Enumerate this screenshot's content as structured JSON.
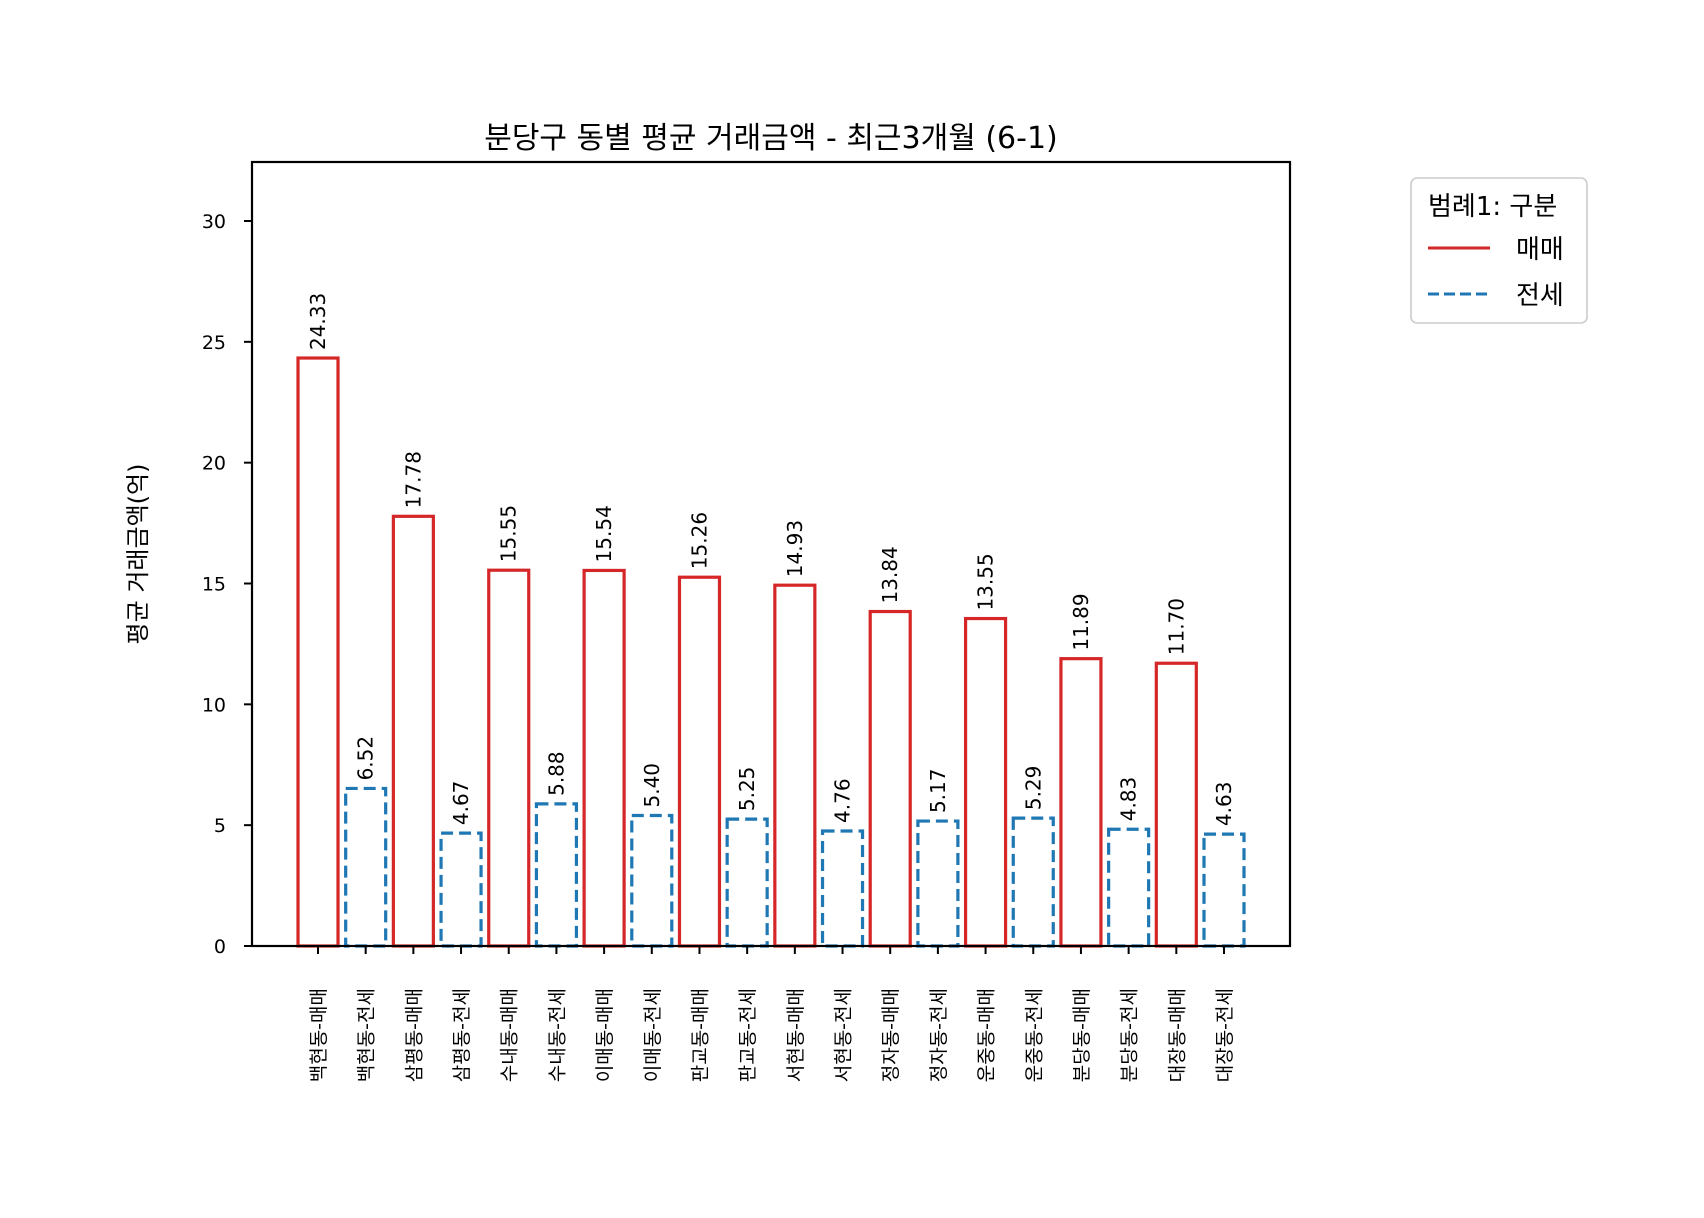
{
  "chart_data": {
    "type": "bar",
    "title": "분당구 동별 평균 거래금액 - 최근3개월 (6-1)",
    "xlabel": "",
    "ylabel": "평균 거래금액(억)",
    "ylim": [
      0,
      32.5
    ],
    "yticks": [
      0,
      5,
      10,
      15,
      20,
      25,
      30
    ],
    "grid": false,
    "legend_position": "outside upper right",
    "categories": [
      "백현동-매매",
      "백현동-전세",
      "삼평동-매매",
      "삼평동-전세",
      "수내동-매매",
      "수내동-전세",
      "이매동-매매",
      "이매동-전세",
      "판교동-매매",
      "판교동-전세",
      "서현동-매매",
      "서현동-전세",
      "정자동-매매",
      "정자동-전세",
      "운중동-매매",
      "운중동-전세",
      "분당동-매매",
      "분당동-전세",
      "대장동-매매",
      "대장동-전세"
    ],
    "values": [
      24.33,
      6.52,
      17.78,
      4.67,
      15.55,
      5.88,
      15.54,
      5.4,
      15.26,
      5.25,
      14.93,
      4.76,
      13.84,
      5.17,
      13.55,
      5.29,
      11.89,
      4.83,
      11.7,
      4.63
    ],
    "value_labels": [
      "24.33",
      "6.52",
      "17.78",
      "4.67",
      "15.55",
      "5.88",
      "15.54",
      "5.40",
      "15.26",
      "5.25",
      "14.93",
      "4.76",
      "13.84",
      "5.17",
      "13.55",
      "5.29",
      "11.89",
      "4.83",
      "11.70",
      "4.63"
    ],
    "kinds": [
      "매매",
      "전세",
      "매매",
      "전세",
      "매매",
      "전세",
      "매매",
      "전세",
      "매매",
      "전세",
      "매매",
      "전세",
      "매매",
      "전세",
      "매매",
      "전세",
      "매매",
      "전세",
      "매매",
      "전세"
    ],
    "series": [
      {
        "name": "매매",
        "values": [
          24.33,
          17.78,
          15.55,
          15.54,
          15.26,
          14.93,
          13.84,
          13.55,
          11.89,
          11.7
        ],
        "color": "#d62728",
        "line_style": "solid"
      },
      {
        "name": "전세",
        "values": [
          6.52,
          4.67,
          5.88,
          5.4,
          5.25,
          4.76,
          5.17,
          5.29,
          4.83,
          4.63
        ],
        "color": "#1f77b4",
        "line_style": "dashed"
      }
    ],
    "legend": {
      "title": "범례1: 구분",
      "entries": [
        {
          "label": "매매",
          "color": "#d62728",
          "line_style": "solid"
        },
        {
          "label": "전세",
          "color": "#1f77b4",
          "line_style": "dashed"
        }
      ]
    }
  }
}
